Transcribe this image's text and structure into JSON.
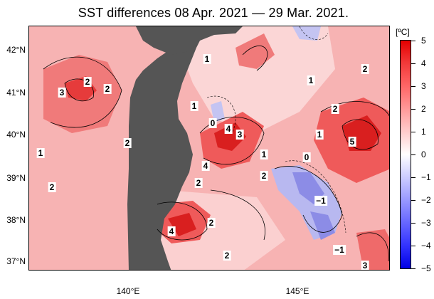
{
  "title": "SST differences 08 Apr. 2021 — 29 Mar. 2021.",
  "colorbar": {
    "unit": "[ºC]",
    "ticks": [
      "5",
      "4",
      "3",
      "2",
      "1",
      "0",
      "−1",
      "−2",
      "−3",
      "−4",
      "−5"
    ],
    "range": [
      -5,
      5
    ],
    "high_color": "#e60000",
    "low_color": "#0000e6"
  },
  "axes": {
    "lat_labels": [
      "42°N",
      "41°N",
      "40°N",
      "39°N",
      "38°N",
      "37°N"
    ],
    "lon_labels": [
      "140°E",
      "145°E"
    ]
  },
  "contour_labels": [
    "1",
    "2",
    "3",
    "2",
    "2",
    "1",
    "0",
    "4",
    "3",
    "1",
    "2",
    "4",
    "1",
    "2",
    "0",
    "2",
    "1",
    "5",
    "2",
    "4",
    "2",
    "−1",
    "2",
    "−1",
    "3",
    "1",
    "2"
  ],
  "colors": {
    "land": "#555555",
    "warm": "#f08080",
    "cool": "#9999ee"
  }
}
